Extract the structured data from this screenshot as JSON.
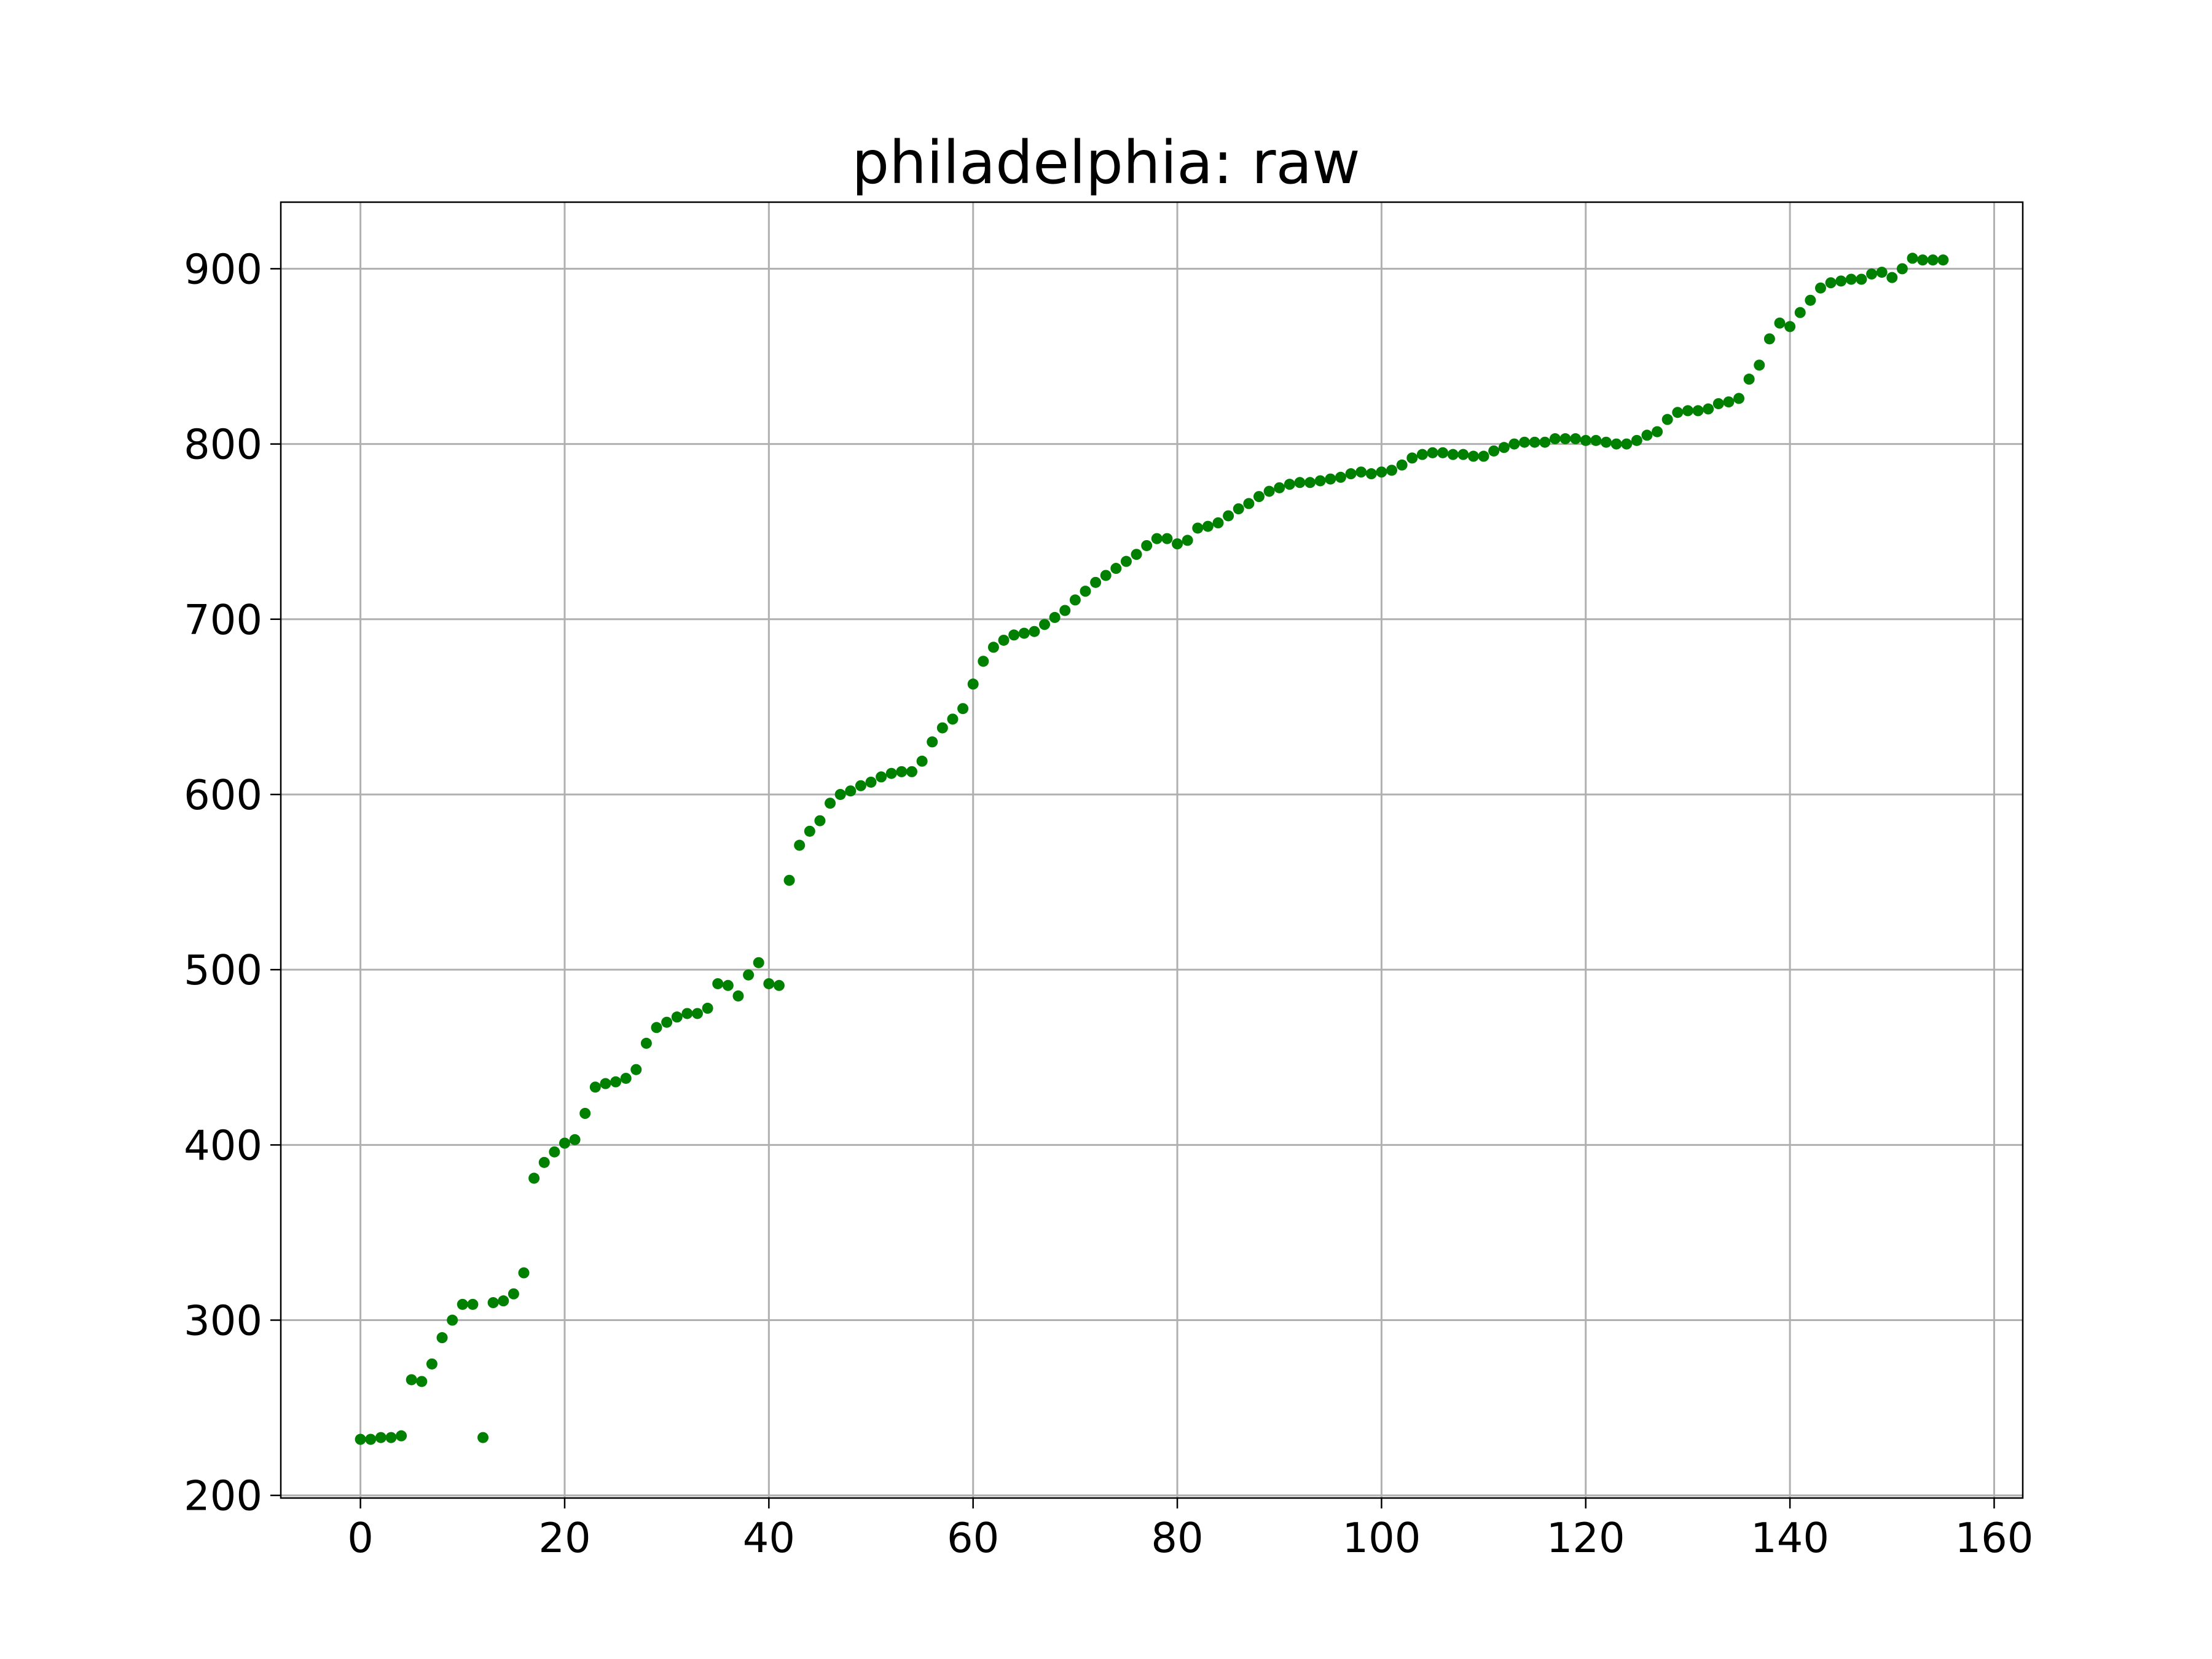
{
  "chart_data": {
    "type": "scatter",
    "title": "philadelphia: raw",
    "xlabel": "",
    "ylabel": "",
    "xlim": [
      -7.8,
      162.8
    ],
    "ylim": [
      198.5,
      938
    ],
    "x_ticks": [
      0,
      20,
      40,
      60,
      80,
      100,
      120,
      140,
      160
    ],
    "y_ticks": [
      200,
      300,
      400,
      500,
      600,
      700,
      800,
      900
    ],
    "x_tick_labels": [
      "0",
      "20",
      "40",
      "60",
      "80",
      "100",
      "120",
      "140",
      "160"
    ],
    "y_tick_labels": [
      "200",
      "300",
      "400",
      "500",
      "600",
      "700",
      "800",
      "900"
    ],
    "grid": true,
    "colors": {
      "points": "#008000",
      "grid": "#b0b0b0",
      "axes": "#000000"
    },
    "series": [
      {
        "x": [
          0,
          1,
          2,
          3,
          4,
          5,
          6,
          7,
          8,
          9,
          10,
          11,
          12,
          13,
          14,
          15,
          16,
          17,
          18,
          19,
          20,
          21,
          22,
          23,
          24,
          25,
          26,
          27,
          28,
          29,
          30,
          31,
          32,
          33,
          34,
          35,
          36,
          37,
          38,
          39,
          40,
          41,
          42,
          43,
          44,
          45,
          46,
          47,
          48,
          49,
          50,
          51,
          52,
          53,
          54,
          55,
          56,
          57,
          58,
          59,
          60,
          61,
          62,
          63,
          64,
          65,
          66,
          67,
          68,
          69,
          70,
          71,
          72,
          73,
          74,
          75,
          76,
          77,
          78,
          79,
          80,
          81,
          82,
          83,
          84,
          85,
          86,
          87,
          88,
          89,
          90,
          91,
          92,
          93,
          94,
          95,
          96,
          97,
          98,
          99,
          100,
          101,
          102,
          103,
          104,
          105,
          106,
          107,
          108,
          109,
          110,
          111,
          112,
          113,
          114,
          115,
          116,
          117,
          118,
          119,
          120,
          121,
          122,
          123,
          124,
          125,
          126,
          127,
          128,
          129,
          130,
          131,
          132,
          133,
          134,
          135,
          136,
          137,
          138,
          139,
          140,
          141,
          142,
          143,
          144,
          145,
          146,
          147,
          148,
          149,
          150,
          151,
          152,
          153,
          154,
          155
        ],
        "y": [
          232,
          232,
          233,
          233,
          234,
          266,
          265,
          275,
          290,
          300,
          309,
          309,
          233,
          310,
          311,
          315,
          327,
          381,
          390,
          396,
          401,
          403,
          418,
          433,
          435,
          436,
          438,
          443,
          458,
          467,
          470,
          473,
          475,
          475,
          478,
          492,
          491,
          485,
          497,
          504,
          492,
          491,
          551,
          571,
          579,
          585,
          595,
          600,
          602,
          605,
          607,
          610,
          612,
          613,
          613,
          619,
          630,
          638,
          643,
          649,
          663,
          676,
          684,
          688,
          691,
          692,
          693,
          697,
          701,
          705,
          711,
          716,
          721,
          725,
          729,
          733,
          737,
          742,
          746,
          746,
          743,
          745,
          752,
          753,
          755,
          759,
          763,
          766,
          770,
          773,
          775,
          777,
          778,
          778,
          779,
          780,
          781,
          783,
          784,
          783,
          784,
          785,
          788,
          792,
          794,
          795,
          795,
          794,
          794,
          793,
          793,
          796,
          798,
          800,
          801,
          801,
          801,
          803,
          803,
          803,
          802,
          802,
          801,
          800,
          800,
          802,
          805,
          807,
          814,
          818,
          819,
          819,
          820,
          823,
          824,
          826,
          837,
          845,
          860,
          869,
          867,
          875,
          882,
          889,
          892,
          893,
          894,
          894,
          897,
          898,
          895,
          900,
          906,
          905,
          905,
          905
        ]
      }
    ]
  }
}
